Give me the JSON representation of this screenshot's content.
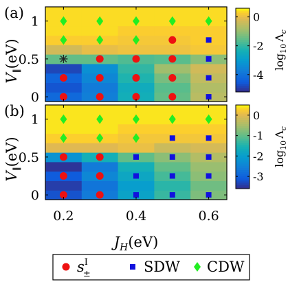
{
  "chart_data": {
    "type": "heatmap",
    "x": [
      0.2,
      0.3,
      0.4,
      0.5,
      0.6
    ],
    "y": [
      0,
      0.125,
      0.25,
      0.375,
      0.5,
      0.625,
      0.75,
      0.875,
      1,
      1.125
    ],
    "xlabel_main": "J",
    "xlabel_sub": "H",
    "xlabel_unit": "(eV)",
    "ylabel_main": "V",
    "ylabel_sub": "∥",
    "ylabel_unit": "(eV)",
    "xticks": [
      "0.2",
      "0.4",
      "0.6"
    ],
    "xtick_values": [
      0.2,
      0.4,
      0.6
    ],
    "yticks": [
      "0",
      "0.5",
      "1"
    ],
    "ytick_values": [
      0,
      0.5,
      1
    ],
    "legend": {
      "position": "bottom",
      "entries": [
        {
          "label_main": "s",
          "label_sup": "I",
          "label_sub": "±",
          "marker": "circle",
          "color": "#ee1111"
        },
        {
          "label": "SDW",
          "marker": "square",
          "color": "#1111dd"
        },
        {
          "label": "CDW",
          "marker": "diamond",
          "color": "#22ee22"
        }
      ]
    },
    "panels": [
      {
        "label": "(a)",
        "colorbar": {
          "label_main": "log",
          "label_sub": "10",
          "label_sym": "Λ",
          "label_symsub": "c",
          "range": [
            -5.2,
            0.6
          ],
          "ticks": [
            "0",
            "-2",
            "-4"
          ],
          "tick_values": [
            0,
            -2,
            -4
          ]
        },
        "values": [
          [
            -4.2,
            -3.7,
            -2.4,
            -1.5,
            -0.6
          ],
          [
            -4.6,
            -3.8,
            -2.5,
            -1.6,
            -0.7
          ],
          [
            -4.3,
            -3.5,
            -2.2,
            -1.3,
            -0.5
          ],
          [
            -4.8,
            -3.3,
            -2.0,
            -0.9,
            -0.3
          ],
          [
            -1.5,
            -1.5,
            -1.7,
            -1.6,
            -1.1
          ],
          [
            -0.3,
            0.0,
            0.1,
            0.1,
            0.2
          ],
          [
            0.3,
            0.3,
            0.2,
            0.2,
            0.3
          ],
          [
            0.4,
            0.4,
            0.3,
            0.3,
            0.3
          ],
          [
            0.4,
            0.4,
            0.4,
            0.4,
            0.4
          ],
          [
            0.4,
            0.4,
            0.4,
            0.4,
            0.4
          ]
        ],
        "markers": [
          {
            "x": 0.2,
            "y": 0,
            "phase": "circle"
          },
          {
            "x": 0.3,
            "y": 0,
            "phase": "circle"
          },
          {
            "x": 0.4,
            "y": 0,
            "phase": "circle"
          },
          {
            "x": 0.5,
            "y": 0,
            "phase": "circle"
          },
          {
            "x": 0.6,
            "y": 0,
            "phase": "square"
          },
          {
            "x": 0.2,
            "y": 0.25,
            "phase": "circle"
          },
          {
            "x": 0.3,
            "y": 0.25,
            "phase": "circle"
          },
          {
            "x": 0.4,
            "y": 0.25,
            "phase": "circle"
          },
          {
            "x": 0.5,
            "y": 0.25,
            "phase": "circle"
          },
          {
            "x": 0.6,
            "y": 0.25,
            "phase": "square"
          },
          {
            "x": 0.2,
            "y": 0.5,
            "phase": "star"
          },
          {
            "x": 0.3,
            "y": 0.5,
            "phase": "circle"
          },
          {
            "x": 0.4,
            "y": 0.5,
            "phase": "circle"
          },
          {
            "x": 0.5,
            "y": 0.5,
            "phase": "circle"
          },
          {
            "x": 0.6,
            "y": 0.5,
            "phase": "square"
          },
          {
            "x": 0.2,
            "y": 0.75,
            "phase": "diamond"
          },
          {
            "x": 0.3,
            "y": 0.75,
            "phase": "diamond"
          },
          {
            "x": 0.4,
            "y": 0.75,
            "phase": "diamond"
          },
          {
            "x": 0.5,
            "y": 0.75,
            "phase": "circle"
          },
          {
            "x": 0.6,
            "y": 0.75,
            "phase": "square"
          },
          {
            "x": 0.2,
            "y": 1,
            "phase": "diamond"
          },
          {
            "x": 0.3,
            "y": 1,
            "phase": "diamond"
          },
          {
            "x": 0.4,
            "y": 1,
            "phase": "diamond"
          },
          {
            "x": 0.5,
            "y": 1,
            "phase": "diamond"
          },
          {
            "x": 0.6,
            "y": 1,
            "phase": "diamond"
          },
          {
            "x": 0.2,
            "y": 1.25,
            "phase": "diamond"
          },
          {
            "x": 0.3,
            "y": 1.25,
            "phase": "diamond"
          },
          {
            "x": 0.4,
            "y": 1.25,
            "phase": "diamond"
          },
          {
            "x": 0.5,
            "y": 1.25,
            "phase": "diamond"
          },
          {
            "x": 0.6,
            "y": 1.25,
            "phase": "diamond"
          }
        ]
      },
      {
        "label": "(b)",
        "colorbar": {
          "label_main": "log",
          "label_sub": "10",
          "label_sym": "Λ",
          "label_symsub": "c",
          "range": [
            -3.6,
            0.5
          ],
          "ticks": [
            "0",
            "-1",
            "-2",
            "-3"
          ],
          "tick_values": [
            0,
            -1,
            -2,
            -3
          ]
        },
        "values": [
          [
            -3.2,
            -2.6,
            -1.9,
            -1.3,
            -0.8
          ],
          [
            -3.4,
            -2.7,
            -2.0,
            -1.4,
            -0.9
          ],
          [
            -3.1,
            -2.4,
            -1.8,
            -1.2,
            -0.7
          ],
          [
            -3.5,
            -2.6,
            -1.6,
            -1.0,
            -0.6
          ],
          [
            -2.2,
            -1.6,
            -1.0,
            -0.7,
            -0.4
          ],
          [
            0.0,
            0.0,
            0.1,
            -0.2,
            -0.1
          ],
          [
            0.3,
            0.3,
            0.2,
            0.2,
            0.2
          ],
          [
            0.4,
            0.4,
            0.3,
            0.3,
            0.3
          ],
          [
            0.4,
            0.4,
            0.4,
            0.4,
            0.4
          ],
          [
            0.4,
            0.4,
            0.4,
            0.4,
            0.4
          ]
        ],
        "markers": [
          {
            "x": 0.2,
            "y": 0,
            "phase": "circle"
          },
          {
            "x": 0.3,
            "y": 0,
            "phase": "circle"
          },
          {
            "x": 0.4,
            "y": 0,
            "phase": "square"
          },
          {
            "x": 0.5,
            "y": 0,
            "phase": "square"
          },
          {
            "x": 0.6,
            "y": 0,
            "phase": "square"
          },
          {
            "x": 0.2,
            "y": 0.25,
            "phase": "circle"
          },
          {
            "x": 0.3,
            "y": 0.25,
            "phase": "circle"
          },
          {
            "x": 0.4,
            "y": 0.25,
            "phase": "square"
          },
          {
            "x": 0.5,
            "y": 0.25,
            "phase": "square"
          },
          {
            "x": 0.6,
            "y": 0.25,
            "phase": "square"
          },
          {
            "x": 0.2,
            "y": 0.5,
            "phase": "circle"
          },
          {
            "x": 0.3,
            "y": 0.5,
            "phase": "circle"
          },
          {
            "x": 0.4,
            "y": 0.5,
            "phase": "square"
          },
          {
            "x": 0.5,
            "y": 0.5,
            "phase": "square"
          },
          {
            "x": 0.6,
            "y": 0.5,
            "phase": "square"
          },
          {
            "x": 0.2,
            "y": 0.75,
            "phase": "diamond"
          },
          {
            "x": 0.3,
            "y": 0.75,
            "phase": "diamond"
          },
          {
            "x": 0.4,
            "y": 0.75,
            "phase": "diamond"
          },
          {
            "x": 0.5,
            "y": 0.75,
            "phase": "square"
          },
          {
            "x": 0.6,
            "y": 0.75,
            "phase": "square"
          },
          {
            "x": 0.2,
            "y": 1,
            "phase": "diamond"
          },
          {
            "x": 0.3,
            "y": 1,
            "phase": "diamond"
          },
          {
            "x": 0.4,
            "y": 1,
            "phase": "diamond"
          },
          {
            "x": 0.5,
            "y": 1,
            "phase": "diamond"
          },
          {
            "x": 0.6,
            "y": 1,
            "phase": "diamond"
          },
          {
            "x": 0.2,
            "y": 1.25,
            "phase": "diamond"
          },
          {
            "x": 0.3,
            "y": 1.25,
            "phase": "diamond"
          },
          {
            "x": 0.4,
            "y": 1.25,
            "phase": "diamond"
          },
          {
            "x": 0.5,
            "y": 1.25,
            "phase": "diamond"
          },
          {
            "x": 0.6,
            "y": 1.25,
            "phase": "diamond"
          }
        ]
      }
    ],
    "marker_colors": {
      "circle": "#ee1111",
      "square": "#1111dd",
      "diamond": "#22ee22",
      "star": "#222222"
    }
  }
}
